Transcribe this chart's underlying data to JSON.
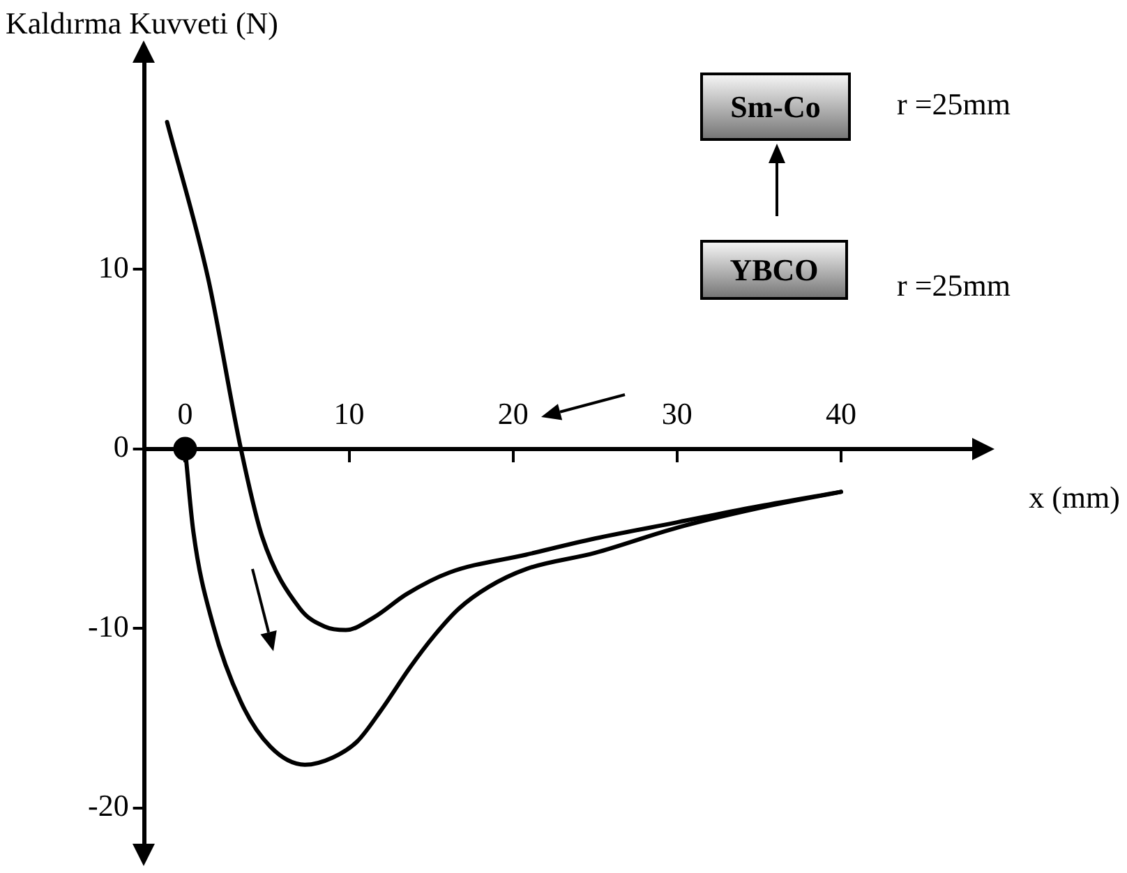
{
  "chart_data": {
    "type": "line",
    "xlabel": "x (mm)",
    "ylabel": "Kaldırma Kuvveti (N)",
    "xlim": [
      -2.5,
      48
    ],
    "ylim": [
      -22,
      21.5
    ],
    "xticks": [
      0,
      10,
      20,
      30,
      40
    ],
    "yticks": [
      -20,
      -10,
      0,
      10
    ],
    "grid": false,
    "legend": false,
    "marker": "none",
    "line_style": "solid",
    "annotations": [
      "Sm-Co",
      "r =25mm",
      "YBCO",
      "r =25mm"
    ],
    "series": [
      {
        "color": "#000000",
        "x": [
          0,
          0.5,
          1.7,
          3.4,
          5.2,
          7.3,
          9,
          10.5,
          12,
          13.7,
          15.2,
          16.7,
          18.5,
          20.8,
          25,
          30,
          35,
          40
        ],
        "values": [
          0,
          -4.6,
          -9.8,
          -14.1,
          -16.6,
          -17.6,
          -17.2,
          -16.3,
          -14.5,
          -12.2,
          -10.4,
          -8.9,
          -7.7,
          -6.7,
          -5.8,
          -4.4,
          -3.3,
          -2.4
        ]
      },
      {
        "color": "#000000",
        "x": [
          -1.1,
          1.4,
          3.4,
          4.7,
          7,
          8.5,
          9.8,
          11.5,
          13.5,
          16.1,
          20.8,
          25,
          30,
          35,
          40
        ],
        "values": [
          18.2,
          9.5,
          0,
          -4.9,
          -8.9,
          -9.9,
          -10.1,
          -9.4,
          -8.1,
          -6.9,
          -5.9,
          -5,
          -4.1,
          -3.2,
          -2.4
        ]
      },
      {
        "type": "scatter",
        "color": "#000000",
        "marker": "circle",
        "x": [
          0
        ],
        "values": [
          0
        ]
      }
    ]
  }
}
